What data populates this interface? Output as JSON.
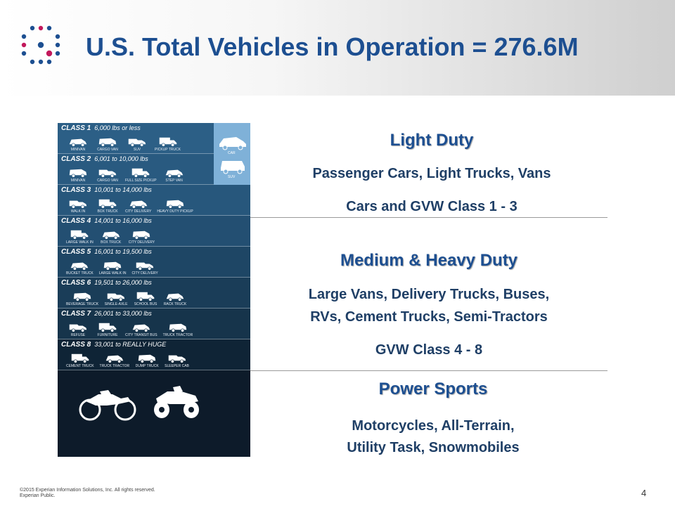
{
  "slide": {
    "title": "U.S. Total Vehicles in Operation = 276.6M",
    "page_number": "4",
    "footer_lines": [
      "©2015  Experian Information Solutions, Inc. All rights reserved.",
      "Experian Public."
    ]
  },
  "sections": [
    {
      "title": "Light Duty",
      "lines": [
        "Passenger Cars, Light Trucks, Vans",
        "Cars and GVW Class 1 - 3"
      ]
    },
    {
      "title": "Medium & Heavy Duty",
      "lines": [
        "Large Vans, Delivery Trucks, Buses,",
        "RVs, Cement Trucks, Semi-Tractors",
        "GVW Class 4 - 8"
      ]
    },
    {
      "title": "Power Sports",
      "lines": [
        "Motorcycles, All-Terrain,",
        "Utility Task, Snowmobiles"
      ]
    }
  ],
  "vehicle_classes": [
    {
      "name": "CLASS 1",
      "range": "6,000 lbs or less",
      "vehicles": [
        "MINIVAN",
        "CARGO VAN",
        "SUV",
        "PICKUP TRUCK"
      ]
    },
    {
      "name": "CLASS 2",
      "range": "6,001 to 10,000 lbs",
      "vehicles": [
        "MINIVAN",
        "CARGO VAN",
        "FULL SIZE PICKUP",
        "STEP VAN"
      ]
    },
    {
      "name": "CLASS 3",
      "range": "10,001 to 14,000 lbs",
      "vehicles": [
        "WALK IN",
        "BOX TRUCK",
        "CITY DELIVERY",
        "HEAVY DUTY PICKUP"
      ]
    },
    {
      "name": "CLASS 4",
      "range": "14,001 to 16,000 lbs",
      "vehicles": [
        "LARGE WALK IN",
        "BOX TRUCK",
        "CITY DELIVERY"
      ]
    },
    {
      "name": "CLASS 5",
      "range": "16,001 to 19,500 lbs",
      "vehicles": [
        "BUCKET TRUCK",
        "LARGE WALK IN",
        "CITY DELIVERY"
      ]
    },
    {
      "name": "CLASS 6",
      "range": "19,501 to 26,000 lbs",
      "vehicles": [
        "BEVERAGE TRUCK",
        "SINGLE-AXLE",
        "SCHOOL BUS",
        "RACK TRUCK"
      ]
    },
    {
      "name": "CLASS 7",
      "range": "26,001 to 33,000 lbs",
      "vehicles": [
        "REFUSE",
        "FURNITURE",
        "CITY TRANSIT BUS",
        "TRUCK TRACTOR"
      ]
    },
    {
      "name": "CLASS 8",
      "range": "33,001 to REALLY HUGE",
      "vehicles": [
        "CEMENT TRUCK",
        "TRUCK TRACTOR",
        "DUMP TRUCK",
        "SLEEPER CAB"
      ]
    }
  ],
  "car_box": {
    "labels": [
      "CAR",
      "SUV"
    ]
  },
  "colors": {
    "title": "#1d4f91",
    "text": "#1f3f66",
    "logo_blue": "#1d4f91",
    "logo_pink": "#c2185b"
  }
}
